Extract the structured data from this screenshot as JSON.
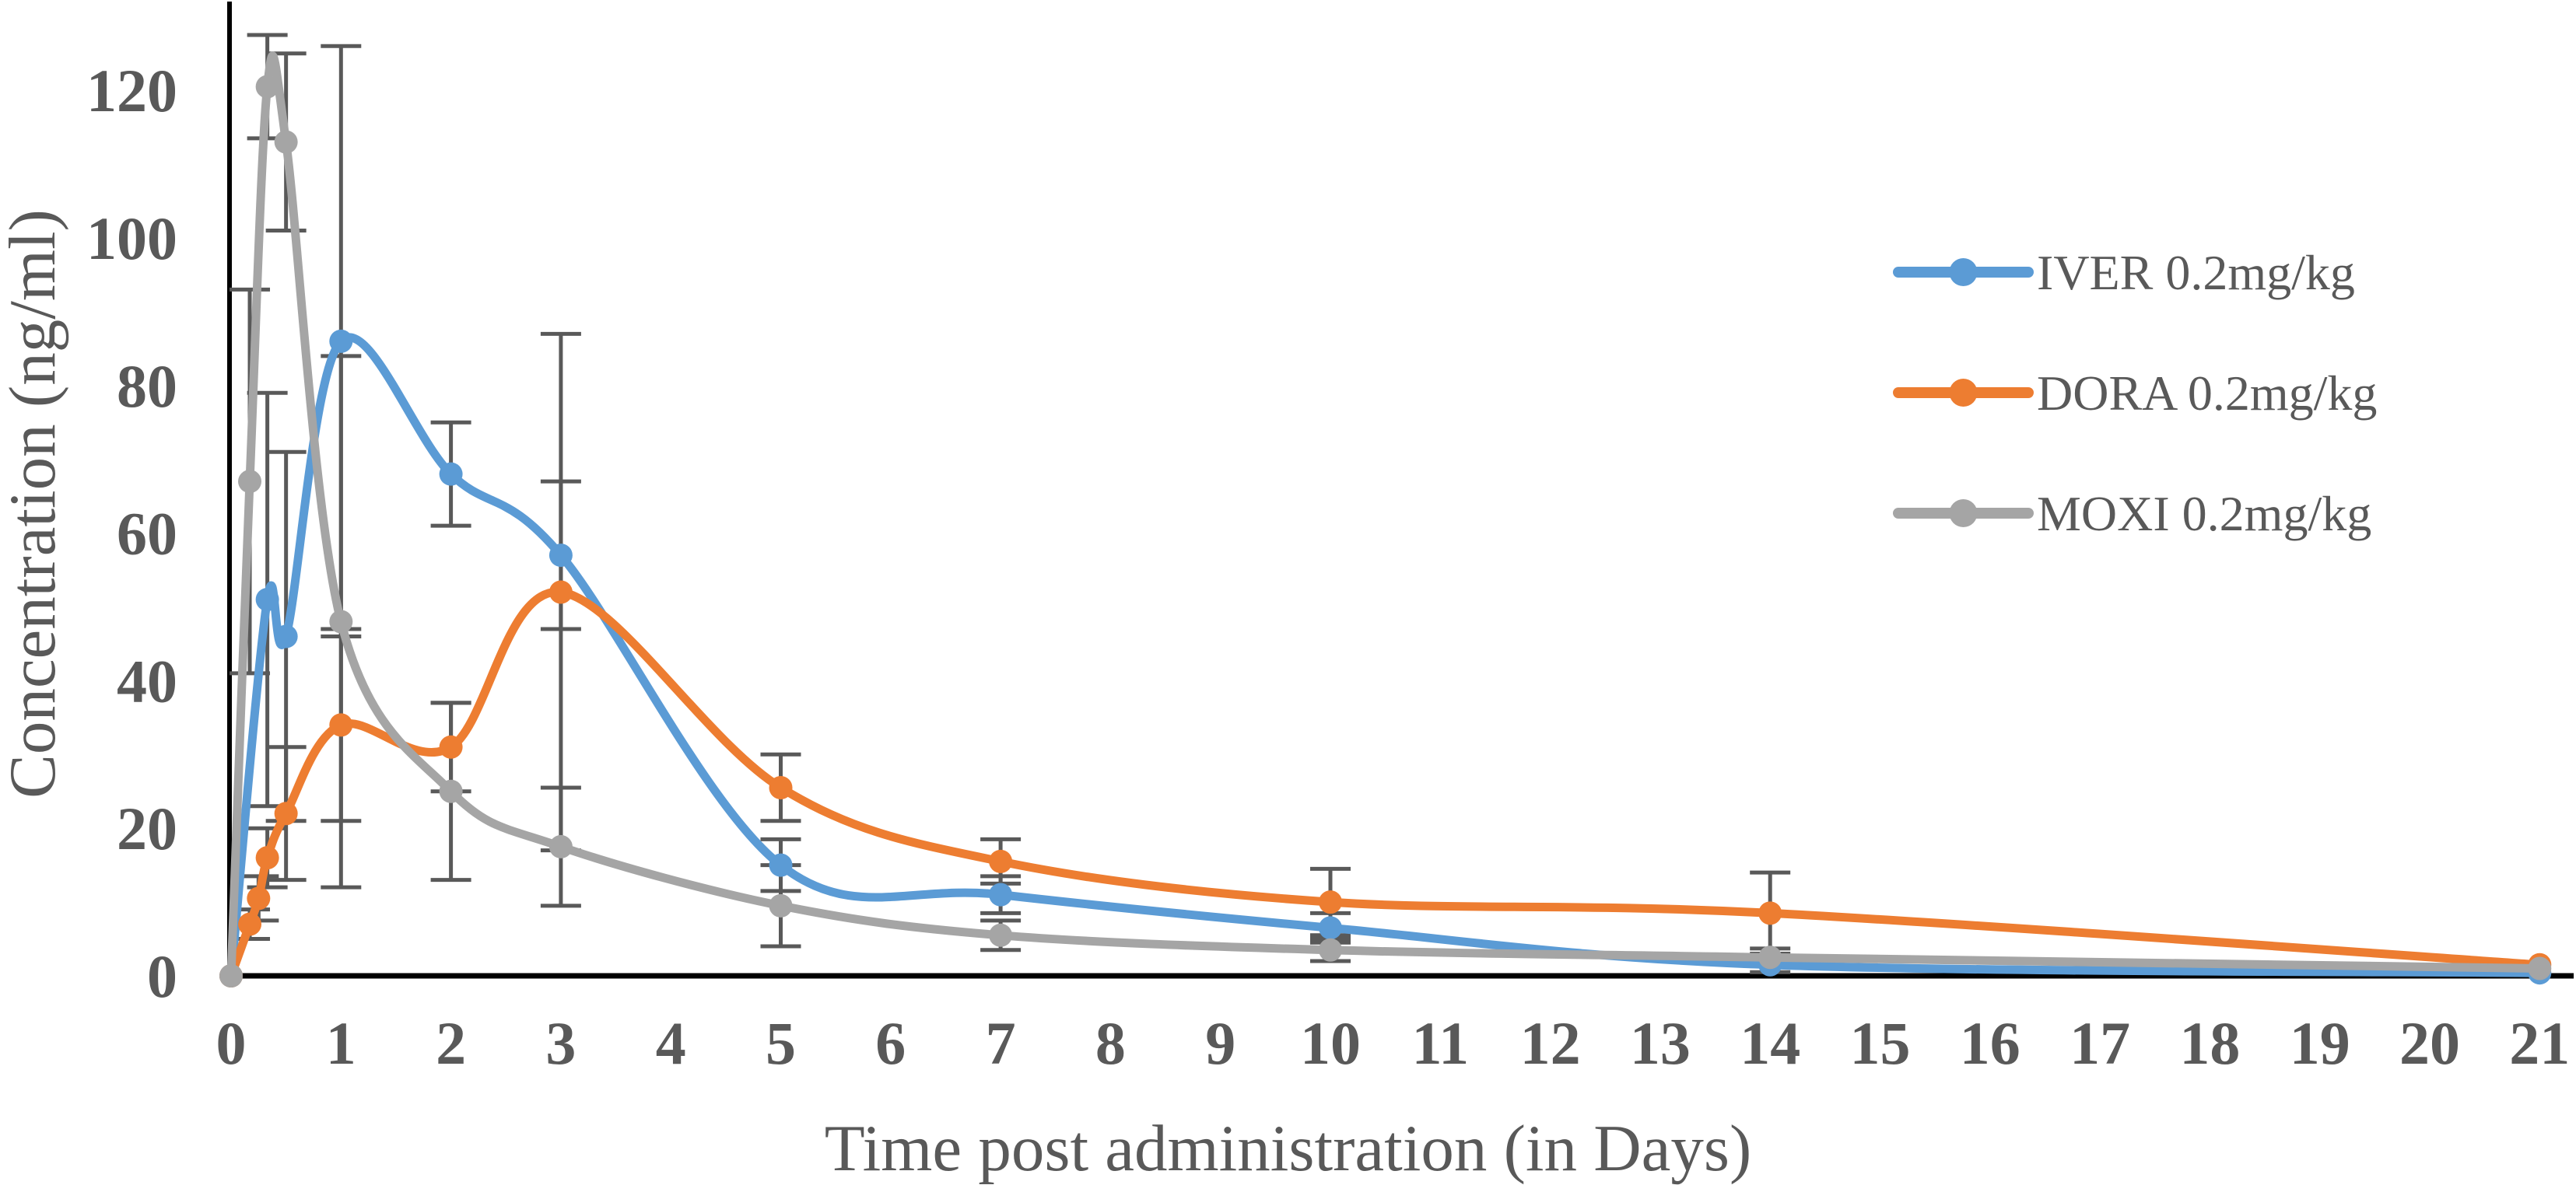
{
  "chart_data": {
    "type": "line",
    "title": "",
    "xlabel": "Time post administration (in Days)",
    "ylabel": "Concentration (ng/ml)",
    "x_ticks": [
      0,
      1,
      2,
      3,
      4,
      5,
      6,
      7,
      8,
      9,
      10,
      11,
      12,
      13,
      14,
      15,
      16,
      17,
      18,
      19,
      20,
      21
    ],
    "y_ticks": [
      0,
      20,
      40,
      60,
      80,
      100,
      120
    ],
    "xlim": [
      0,
      21
    ],
    "ylim": [
      0,
      130
    ],
    "grid": false,
    "legend_position": "upper right",
    "styles": {
      "axis_color": "#000000",
      "text_color": "#595959",
      "error_bar_color": "#595959",
      "background": "#ffffff"
    },
    "series": [
      {
        "name": "IVER 0.2mg/kg",
        "color": "#5B9BD5",
        "marker": "circle-icon",
        "points": [
          {
            "x": 0,
            "y": 0,
            "err": 0
          },
          {
            "x": 0.33,
            "y": 51,
            "err": 28
          },
          {
            "x": 0.5,
            "y": 46,
            "err": 25
          },
          {
            "x": 1,
            "y": 86,
            "err": 40
          },
          {
            "x": 2,
            "y": 68,
            "err": 7
          },
          {
            "x": 3,
            "y": 57,
            "err": 10
          },
          {
            "x": 5,
            "y": 15,
            "err": 3.5
          },
          {
            "x": 7,
            "y": 11,
            "err": 2.5
          },
          {
            "x": 10,
            "y": 6.5,
            "err": 2
          },
          {
            "x": 14,
            "y": 1.5,
            "err": 1
          },
          {
            "x": 21,
            "y": 0.4,
            "err": 0
          }
        ]
      },
      {
        "name": "DORA 0.2mg/kg",
        "color": "#ED7D31",
        "marker": "circle-icon",
        "points": [
          {
            "x": 0,
            "y": 0,
            "err": 0
          },
          {
            "x": 0.17,
            "y": 7,
            "err": 2
          },
          {
            "x": 0.25,
            "y": 10.5,
            "err": 3
          },
          {
            "x": 0.33,
            "y": 16,
            "err": 4
          },
          {
            "x": 0.5,
            "y": 22,
            "err": 9
          },
          {
            "x": 1,
            "y": 34,
            "err": 13
          },
          {
            "x": 2,
            "y": 31,
            "err": 6
          },
          {
            "x": 3,
            "y": 52,
            "err": 35
          },
          {
            "x": 5,
            "y": 25.5,
            "err": 4.5
          },
          {
            "x": 7,
            "y": 15.5,
            "err": 3
          },
          {
            "x": 10,
            "y": 10,
            "err": 4.5
          },
          {
            "x": 14,
            "y": 8.5,
            "err": 5.5
          },
          {
            "x": 21,
            "y": 1.5,
            "err": 0
          }
        ]
      },
      {
        "name": "MOXI 0.2mg/kg",
        "color": "#A5A5A5",
        "marker": "circle-icon",
        "points": [
          {
            "x": 0,
            "y": 0,
            "err": 0
          },
          {
            "x": 0.17,
            "y": 67,
            "err": 26
          },
          {
            "x": 0.33,
            "y": 120.5,
            "err": 7
          },
          {
            "x": 0.5,
            "y": 113,
            "err": 12
          },
          {
            "x": 1,
            "y": 48,
            "err": 36
          },
          {
            "x": 2,
            "y": 25,
            "err": 12
          },
          {
            "x": 3,
            "y": 17.5,
            "err": 8
          },
          {
            "x": 5,
            "y": 9.5,
            "err": 5.5
          },
          {
            "x": 7,
            "y": 5.5,
            "err": 2
          },
          {
            "x": 10,
            "y": 3.5,
            "err": 1.5
          },
          {
            "x": 14,
            "y": 2.5,
            "err": 1.2
          },
          {
            "x": 21,
            "y": 1,
            "err": 0
          }
        ]
      }
    ]
  }
}
